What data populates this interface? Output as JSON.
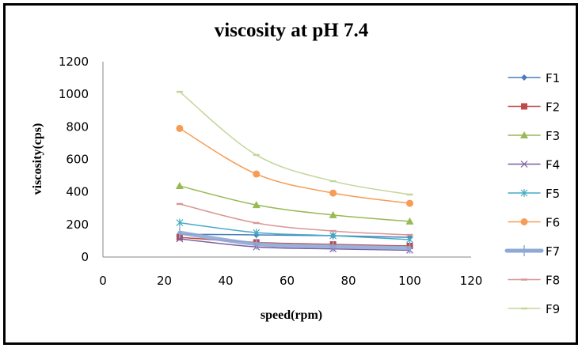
{
  "chart_data": {
    "type": "line",
    "title": "viscosity at pH 7.4",
    "xlabel": "speed(rpm)",
    "ylabel": "viscosity(cps)",
    "xlim": [
      0,
      120
    ],
    "ylim": [
      0,
      1200
    ],
    "xticks": [
      0,
      20,
      40,
      60,
      80,
      100,
      120
    ],
    "yticks": [
      0,
      200,
      400,
      600,
      800,
      1000,
      1200
    ],
    "grid": false,
    "legend_position": "right",
    "x": [
      25,
      50,
      75,
      100
    ],
    "series": [
      {
        "name": "F1",
        "values": [
          140,
          136,
          131,
          121
        ],
        "color": "#4a7ebb",
        "marker": "diamond",
        "smooth": true
      },
      {
        "name": "F2",
        "values": [
          121,
          90,
          78,
          68
        ],
        "color": "#be4b48",
        "marker": "square",
        "smooth": true
      },
      {
        "name": "F3",
        "values": [
          437,
          320,
          258,
          219
        ],
        "color": "#98b954",
        "marker": "triangle",
        "smooth": true
      },
      {
        "name": "F4",
        "values": [
          112,
          62,
          50,
          42
        ],
        "color": "#7d5fa0",
        "marker": "x",
        "smooth": true
      },
      {
        "name": "F5",
        "values": [
          211,
          150,
          131,
          107
        ],
        "color": "#46aac5",
        "marker": "star",
        "smooth": true
      },
      {
        "name": "F6",
        "values": [
          790,
          510,
          393,
          330
        ],
        "color": "#f59d56",
        "marker": "circle",
        "smooth": true
      },
      {
        "name": "F7",
        "values": [
          150,
          80,
          65,
          55
        ],
        "color": "#8fa9d6",
        "marker": "plus",
        "thick": true,
        "smooth": true
      },
      {
        "name": "F8",
        "values": [
          326,
          209,
          160,
          136
        ],
        "color": "#d99694",
        "marker": "dash",
        "smooth": true
      },
      {
        "name": "F9",
        "values": [
          1015,
          627,
          466,
          384
        ],
        "color": "#c3d69b",
        "marker": "dash",
        "smooth": true
      }
    ]
  }
}
